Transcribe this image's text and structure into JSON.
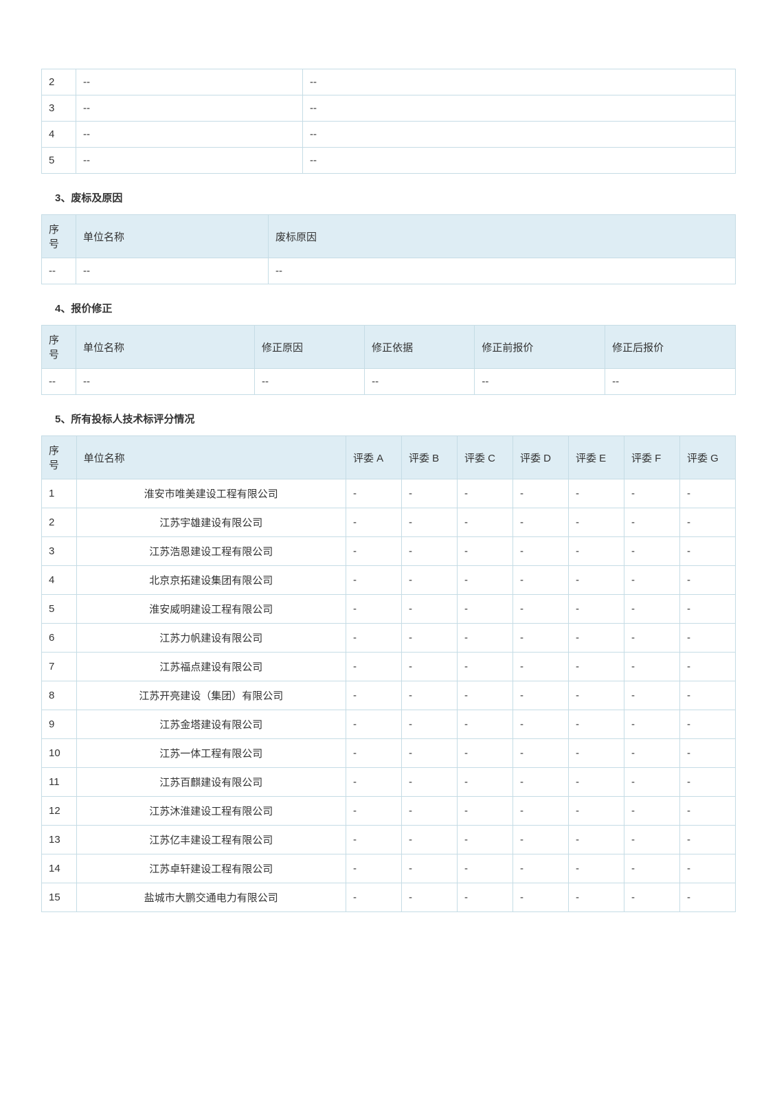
{
  "table1": {
    "rows": [
      {
        "seq": "2",
        "c2": "--",
        "c3": "--"
      },
      {
        "seq": "3",
        "c2": "--",
        "c3": "--"
      },
      {
        "seq": "4",
        "c2": "--",
        "c3": "--"
      },
      {
        "seq": "5",
        "c2": "--",
        "c3": "--"
      }
    ]
  },
  "section3": {
    "title": "3、废标及原因",
    "headers": {
      "seq": "序号",
      "unit": "单位名称",
      "reason": "废标原因"
    },
    "rows": [
      {
        "seq": "--",
        "unit": "--",
        "reason": "--"
      }
    ]
  },
  "section4": {
    "title": "4、报价修正",
    "headers": {
      "seq": "序号",
      "unit": "单位名称",
      "reason": "修正原因",
      "basis": "修正依据",
      "before": "修正前报价",
      "after": "修正后报价"
    },
    "rows": [
      {
        "seq": "--",
        "unit": "--",
        "reason": "--",
        "basis": "--",
        "before": "--",
        "after": "--"
      }
    ]
  },
  "section5": {
    "title": "5、所有投标人技术标评分情况",
    "headers": {
      "seq": "序号",
      "unit": "单位名称",
      "a": "评委 A",
      "b": "评委 B",
      "c": "评委 C",
      "d": "评委 D",
      "e": "评委 E",
      "f": "评委 F",
      "g": "评委 G"
    },
    "rows": [
      {
        "seq": "1",
        "unit": "淮安市唯美建设工程有限公司",
        "a": "-",
        "b": "-",
        "c": "-",
        "d": "-",
        "e": "-",
        "f": "-",
        "g": "-"
      },
      {
        "seq": "2",
        "unit": "江苏宇雄建设有限公司",
        "a": "-",
        "b": "-",
        "c": "-",
        "d": "-",
        "e": "-",
        "f": "-",
        "g": "-"
      },
      {
        "seq": "3",
        "unit": "江苏浩恩建设工程有限公司",
        "a": "-",
        "b": "-",
        "c": "-",
        "d": "-",
        "e": "-",
        "f": "-",
        "g": "-"
      },
      {
        "seq": "4",
        "unit": "北京京拓建设集团有限公司",
        "a": "-",
        "b": "-",
        "c": "-",
        "d": "-",
        "e": "-",
        "f": "-",
        "g": "-"
      },
      {
        "seq": "5",
        "unit": "淮安威明建设工程有限公司",
        "a": "-",
        "b": "-",
        "c": "-",
        "d": "-",
        "e": "-",
        "f": "-",
        "g": "-"
      },
      {
        "seq": "6",
        "unit": "江苏力帆建设有限公司",
        "a": "-",
        "b": "-",
        "c": "-",
        "d": "-",
        "e": "-",
        "f": "-",
        "g": "-"
      },
      {
        "seq": "7",
        "unit": "江苏福点建设有限公司",
        "a": "-",
        "b": "-",
        "c": "-",
        "d": "-",
        "e": "-",
        "f": "-",
        "g": "-"
      },
      {
        "seq": "8",
        "unit": "江苏开亮建设（集团）有限公司",
        "a": "-",
        "b": "-",
        "c": "-",
        "d": "-",
        "e": "-",
        "f": "-",
        "g": "-"
      },
      {
        "seq": "9",
        "unit": "江苏金塔建设有限公司",
        "a": "-",
        "b": "-",
        "c": "-",
        "d": "-",
        "e": "-",
        "f": "-",
        "g": "-"
      },
      {
        "seq": "10",
        "unit": "江苏一体工程有限公司",
        "a": "-",
        "b": "-",
        "c": "-",
        "d": "-",
        "e": "-",
        "f": "-",
        "g": "-"
      },
      {
        "seq": "11",
        "unit": "江苏百麒建设有限公司",
        "a": "-",
        "b": "-",
        "c": "-",
        "d": "-",
        "e": "-",
        "f": "-",
        "g": "-"
      },
      {
        "seq": "12",
        "unit": "江苏沐淮建设工程有限公司",
        "a": "-",
        "b": "-",
        "c": "-",
        "d": "-",
        "e": "-",
        "f": "-",
        "g": "-"
      },
      {
        "seq": "13",
        "unit": "江苏亿丰建设工程有限公司",
        "a": "-",
        "b": "-",
        "c": "-",
        "d": "-",
        "e": "-",
        "f": "-",
        "g": "-"
      },
      {
        "seq": "14",
        "unit": "江苏卓轩建设工程有限公司",
        "a": "-",
        "b": "-",
        "c": "-",
        "d": "-",
        "e": "-",
        "f": "-",
        "g": "-"
      },
      {
        "seq": "15",
        "unit": "盐城市大鹏交通电力有限公司",
        "a": "-",
        "b": "-",
        "c": "-",
        "d": "-",
        "e": "-",
        "f": "-",
        "g": "-"
      }
    ]
  }
}
